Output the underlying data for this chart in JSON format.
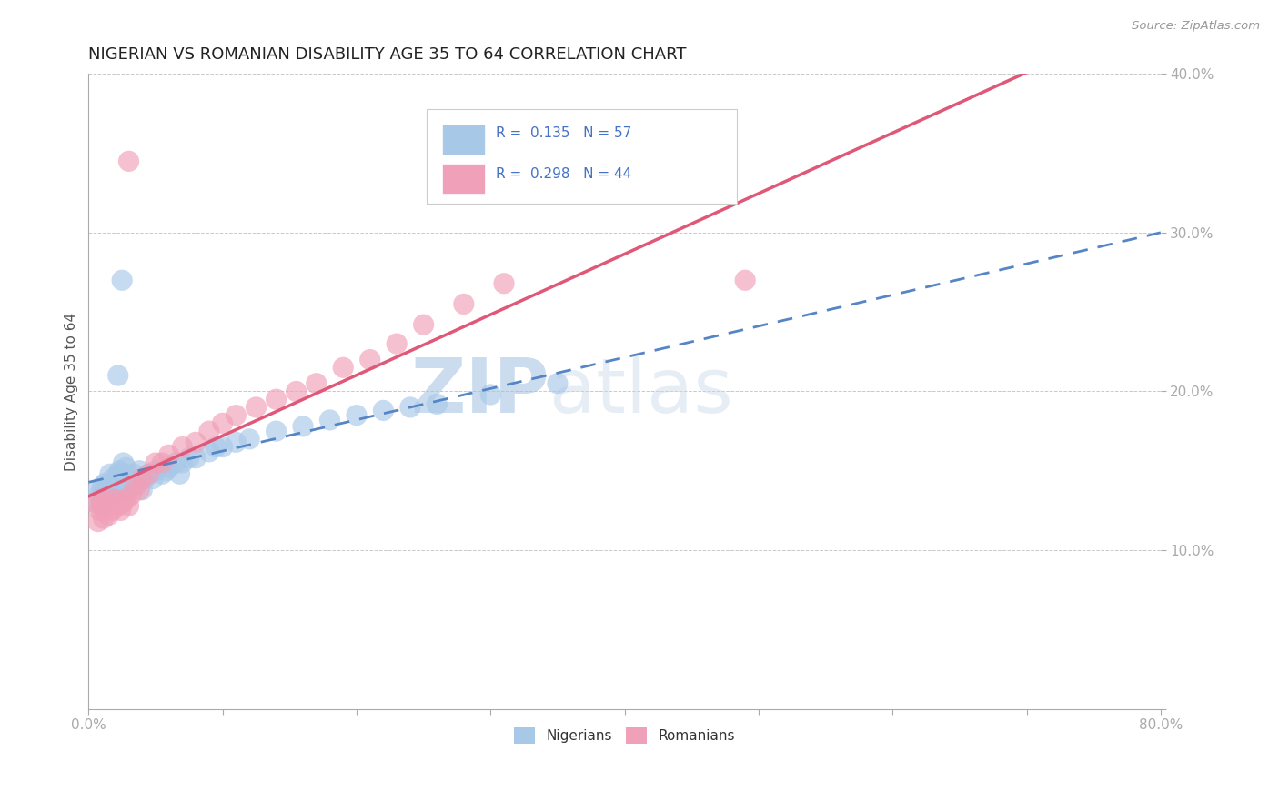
{
  "title": "NIGERIAN VS ROMANIAN DISABILITY AGE 35 TO 64 CORRELATION CHART",
  "source": "Source: ZipAtlas.com",
  "ylabel": "Disability Age 35 to 64",
  "xlim": [
    0.0,
    0.8
  ],
  "ylim": [
    0.0,
    0.4
  ],
  "legend_R_blue": "0.135",
  "legend_N_blue": "57",
  "legend_R_pink": "0.298",
  "legend_N_pink": "44",
  "nigerian_color": "#a8c8e8",
  "romanian_color": "#f0a0b8",
  "nigerian_line_color": "#5585c5",
  "romanian_line_color": "#e05878",
  "background_color": "#ffffff",
  "grid_color": "#bbbbbb",
  "watermark_color": "#ccdcee",
  "nigerian_x": [
    0.005,
    0.007,
    0.008,
    0.009,
    0.01,
    0.01,
    0.011,
    0.012,
    0.013,
    0.014,
    0.015,
    0.016,
    0.017,
    0.018,
    0.019,
    0.02,
    0.021,
    0.022,
    0.023,
    0.025,
    0.026,
    0.027,
    0.028,
    0.03,
    0.032,
    0.034,
    0.036,
    0.038,
    0.04,
    0.042,
    0.045,
    0.048,
    0.05,
    0.055,
    0.058,
    0.06,
    0.065,
    0.068,
    0.07,
    0.075,
    0.08,
    0.09,
    0.095,
    0.1,
    0.11,
    0.12,
    0.14,
    0.16,
    0.18,
    0.2,
    0.22,
    0.24,
    0.26,
    0.3,
    0.35,
    0.025,
    0.022
  ],
  "nigerian_y": [
    0.13,
    0.138,
    0.135,
    0.132,
    0.14,
    0.128,
    0.135,
    0.142,
    0.138,
    0.133,
    0.136,
    0.148,
    0.138,
    0.145,
    0.135,
    0.142,
    0.145,
    0.148,
    0.15,
    0.14,
    0.155,
    0.148,
    0.152,
    0.138,
    0.145,
    0.148,
    0.142,
    0.15,
    0.138,
    0.145,
    0.148,
    0.145,
    0.15,
    0.148,
    0.15,
    0.152,
    0.155,
    0.148,
    0.155,
    0.158,
    0.158,
    0.162,
    0.165,
    0.165,
    0.168,
    0.17,
    0.175,
    0.178,
    0.182,
    0.185,
    0.188,
    0.19,
    0.192,
    0.198,
    0.205,
    0.27,
    0.21
  ],
  "romanian_x": [
    0.005,
    0.007,
    0.008,
    0.009,
    0.01,
    0.011,
    0.012,
    0.013,
    0.015,
    0.016,
    0.017,
    0.018,
    0.019,
    0.02,
    0.022,
    0.024,
    0.026,
    0.028,
    0.03,
    0.032,
    0.035,
    0.038,
    0.04,
    0.045,
    0.05,
    0.055,
    0.06,
    0.07,
    0.08,
    0.09,
    0.1,
    0.11,
    0.125,
    0.14,
    0.155,
    0.17,
    0.19,
    0.21,
    0.23,
    0.25,
    0.28,
    0.31,
    0.49,
    0.03
  ],
  "romanian_y": [
    0.13,
    0.118,
    0.125,
    0.132,
    0.128,
    0.12,
    0.125,
    0.13,
    0.122,
    0.128,
    0.132,
    0.125,
    0.128,
    0.132,
    0.128,
    0.125,
    0.13,
    0.132,
    0.128,
    0.135,
    0.14,
    0.138,
    0.145,
    0.148,
    0.155,
    0.155,
    0.16,
    0.165,
    0.168,
    0.175,
    0.18,
    0.185,
    0.19,
    0.195,
    0.2,
    0.205,
    0.215,
    0.22,
    0.23,
    0.242,
    0.255,
    0.268,
    0.27,
    0.345
  ]
}
